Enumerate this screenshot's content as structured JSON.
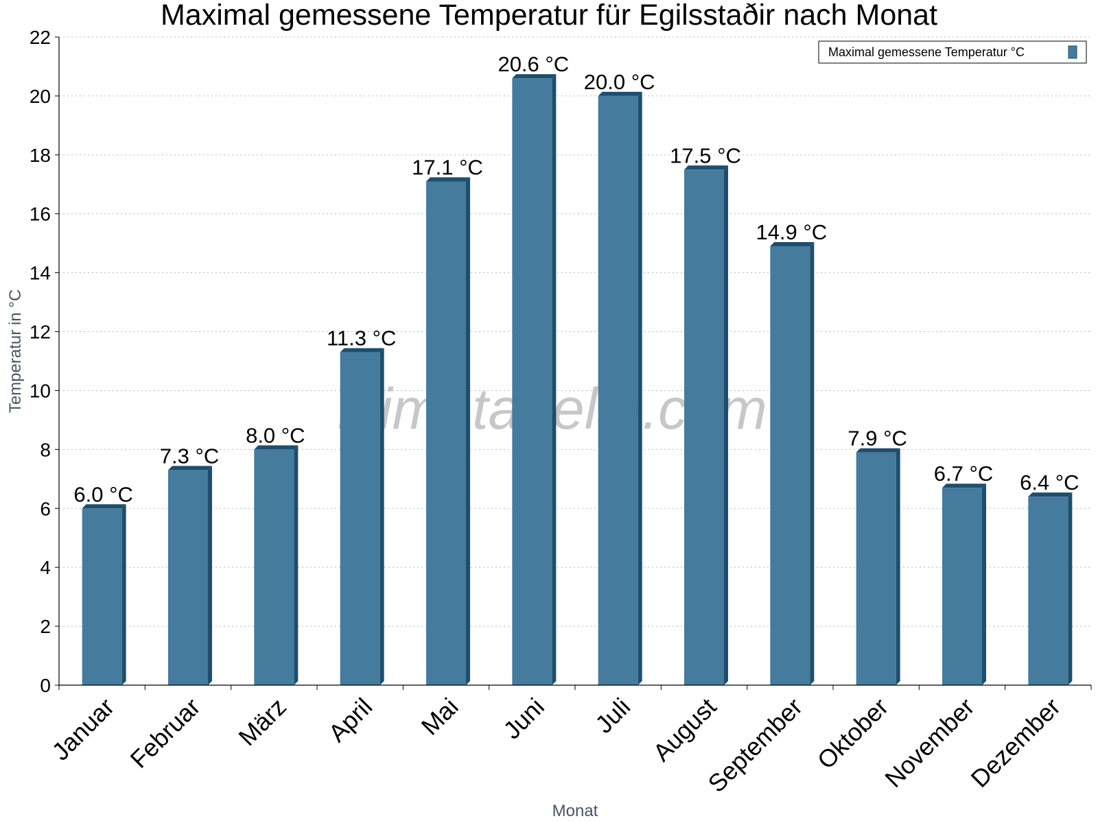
{
  "chart_data": {
    "type": "bar",
    "title": "Maximal gemessene Temperatur für Egilsstaðir nach Monat",
    "xlabel": "Monat",
    "ylabel": "Temperatur in °C",
    "ylim": [
      0,
      22
    ],
    "yticks": [
      0,
      2,
      4,
      6,
      8,
      10,
      12,
      14,
      16,
      18,
      20,
      22
    ],
    "grid": true,
    "legend_position": "top-right",
    "categories": [
      "Januar",
      "Februar",
      "März",
      "April",
      "Mai",
      "Juni",
      "Juli",
      "August",
      "September",
      "Oktober",
      "November",
      "Dezember"
    ],
    "series": [
      {
        "name": "Maximal gemessene Temperatur °C",
        "values": [
          6.0,
          7.3,
          8.0,
          11.3,
          17.1,
          20.6,
          20.0,
          17.5,
          14.9,
          7.9,
          6.7,
          6.4
        ],
        "labels": [
          "6.0 °C",
          "7.3 °C",
          "8.0 °C",
          "11.3 °C",
          "17.1 °C",
          "20.6 °C",
          "20.0 °C",
          "17.5 °C",
          "14.9 °C",
          "7.9 °C",
          "6.7 °C",
          "6.4 °C"
        ],
        "color": "#457b9d",
        "edge_color": "#1d4e6e"
      }
    ],
    "watermark": "klimatabelle.com"
  }
}
